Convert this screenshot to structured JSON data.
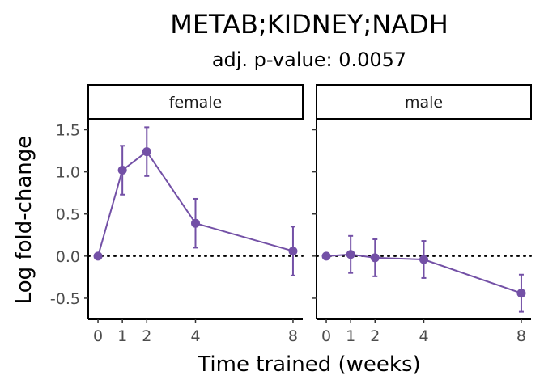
{
  "chart_data": {
    "type": "line",
    "title": "METAB;KIDNEY;NADH",
    "subtitle": "adj. p-value: 0.0057",
    "xlabel": "Time trained (weeks)",
    "ylabel": "Log fold-change",
    "x_ticks": [
      0,
      1,
      2,
      4,
      8
    ],
    "y_ticks": [
      -0.5,
      0.0,
      0.5,
      1.0,
      1.5
    ],
    "y_tick_labels": [
      "-0.5",
      "0.0",
      "0.5",
      "1.0",
      "1.5"
    ],
    "xlim": [
      -0.4,
      8.4
    ],
    "ylim": [
      -0.75,
      1.62
    ],
    "reference_line": 0,
    "grid": false,
    "color": "#7350a6",
    "panels": [
      {
        "facet": "female",
        "points": [
          {
            "x": 0,
            "y": 0.0,
            "lo": 0.0,
            "hi": 0.0
          },
          {
            "x": 1,
            "y": 1.02,
            "lo": 0.73,
            "hi": 1.31
          },
          {
            "x": 2,
            "y": 1.24,
            "lo": 0.95,
            "hi": 1.53
          },
          {
            "x": 4,
            "y": 0.39,
            "lo": 0.1,
            "hi": 0.68
          },
          {
            "x": 8,
            "y": 0.06,
            "lo": -0.23,
            "hi": 0.35
          }
        ]
      },
      {
        "facet": "male",
        "points": [
          {
            "x": 0,
            "y": 0.0,
            "lo": 0.0,
            "hi": 0.0
          },
          {
            "x": 1,
            "y": 0.02,
            "lo": -0.2,
            "hi": 0.24
          },
          {
            "x": 2,
            "y": -0.02,
            "lo": -0.24,
            "hi": 0.2
          },
          {
            "x": 4,
            "y": -0.04,
            "lo": -0.26,
            "hi": 0.18
          },
          {
            "x": 8,
            "y": -0.44,
            "lo": -0.66,
            "hi": -0.22
          }
        ]
      }
    ]
  }
}
